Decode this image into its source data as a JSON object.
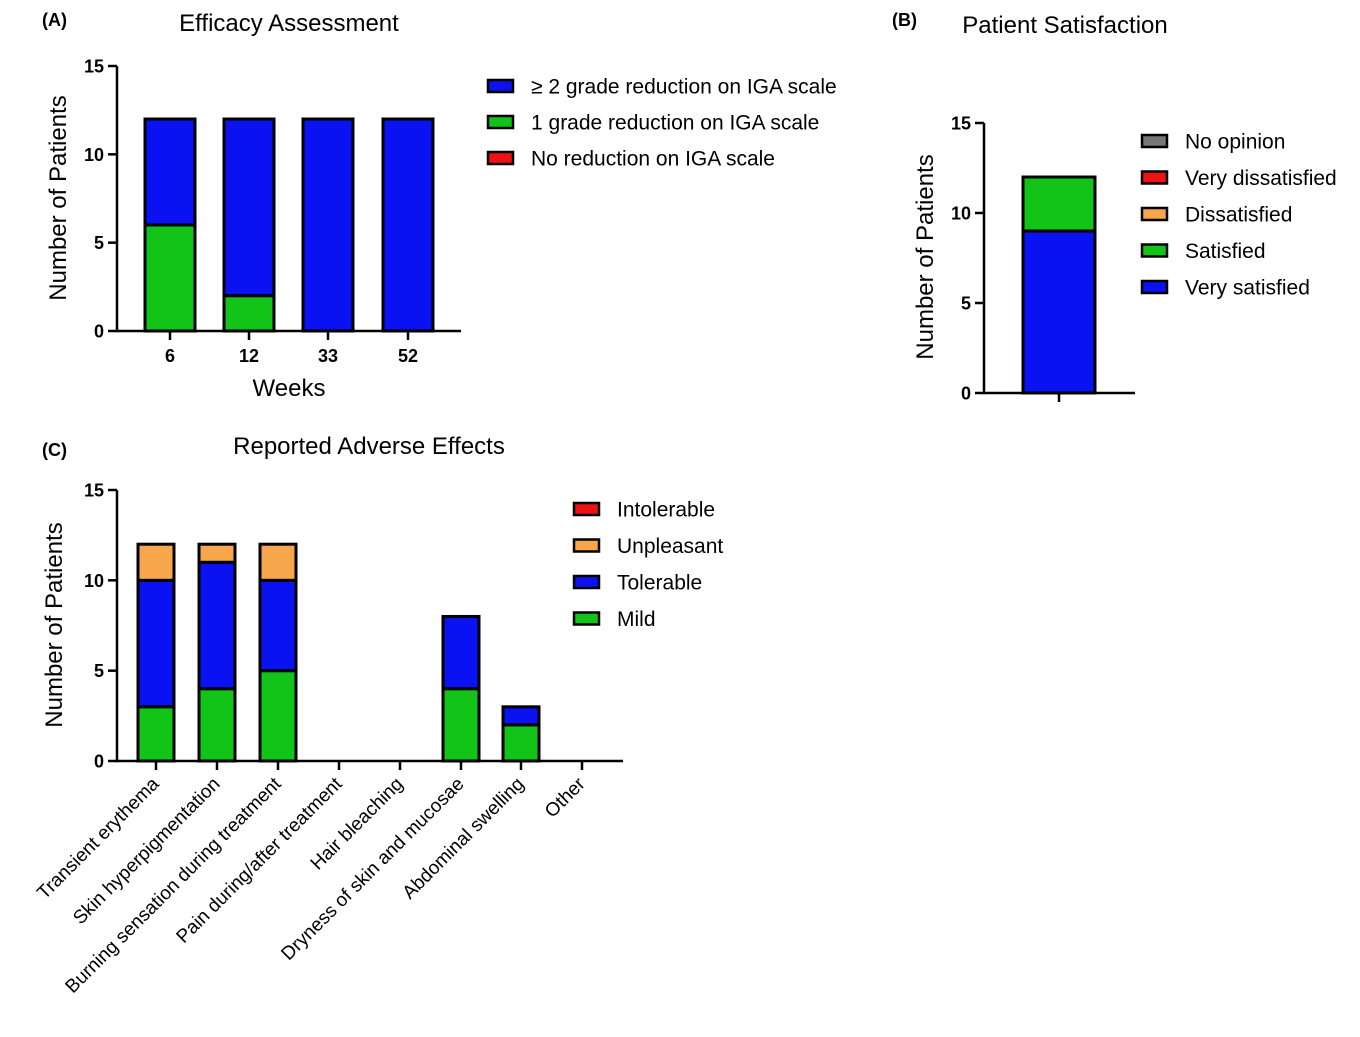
{
  "colors": {
    "blue": "#0a12f2",
    "green": "#12c418",
    "red": "#f01212",
    "orange": "#f7a64b",
    "gray": "#777777"
  },
  "chart_data": [
    {
      "id": "A",
      "panel": "(A)",
      "type": "bar",
      "stacked": true,
      "title": "Efficacy Assessment",
      "xlabel": "Weeks",
      "ylabel": "Number of Patients",
      "ylim": [
        0,
        15
      ],
      "yticks": [
        0,
        5,
        10,
        15
      ],
      "categories": [
        "6",
        "12",
        "33",
        "52"
      ],
      "series": [
        {
          "name": "1 grade reduction on IGA scale",
          "color": "#12c418",
          "values": [
            6,
            2,
            0,
            0
          ]
        },
        {
          "name": "≥ 2 grade reduction on IGA scale",
          "color": "#0a12f2",
          "values": [
            6,
            10,
            12,
            12
          ]
        },
        {
          "name": "No reduction on IGA scale",
          "color": "#f01212",
          "values": [
            0,
            0,
            0,
            0
          ]
        }
      ],
      "legend": {
        "placement": "right",
        "order": [
          {
            "name": "≥ 2 grade reduction on IGA scale",
            "color": "#0a12f2"
          },
          {
            "name": "1 grade reduction on IGA scale",
            "color": "#12c418"
          },
          {
            "name": "No reduction on IGA scale",
            "color": "#f01212"
          }
        ]
      }
    },
    {
      "id": "B",
      "panel": "(B)",
      "type": "bar",
      "stacked": true,
      "title": "Patient Satisfaction",
      "xlabel": "",
      "ylabel": "Number of Patients",
      "ylim": [
        0,
        15
      ],
      "yticks": [
        0,
        5,
        10,
        15
      ],
      "categories": [
        ""
      ],
      "series": [
        {
          "name": "Very satisfied",
          "color": "#0a12f2",
          "values": [
            9
          ]
        },
        {
          "name": "Satisfied",
          "color": "#12c418",
          "values": [
            3
          ]
        },
        {
          "name": "Dissatisfied",
          "color": "#f7a64b",
          "values": [
            0
          ]
        },
        {
          "name": "Very dissatisfied",
          "color": "#f01212",
          "values": [
            0
          ]
        },
        {
          "name": "No opinion",
          "color": "#777777",
          "values": [
            0
          ]
        }
      ],
      "legend": {
        "placement": "right",
        "order": [
          {
            "name": "No opinion",
            "color": "#777777"
          },
          {
            "name": "Very dissatisfied",
            "color": "#f01212"
          },
          {
            "name": "Dissatisfied",
            "color": "#f7a64b"
          },
          {
            "name": "Satisfied",
            "color": "#12c418"
          },
          {
            "name": "Very satisfied",
            "color": "#0a12f2"
          }
        ]
      }
    },
    {
      "id": "C",
      "panel": "(C)",
      "type": "bar",
      "stacked": true,
      "title": "Reported Adverse Effects",
      "xlabel": "",
      "ylabel": "Number of Patients",
      "ylim": [
        0,
        15
      ],
      "yticks": [
        0,
        5,
        10,
        15
      ],
      "categories": [
        "Transient erythema",
        "Skin hyperpigmentation",
        "Burning sensation during treatment",
        "Pain during/after treatment",
        "Hair bleaching",
        "Dryness of skin and mucosae",
        "Abdominal swelling",
        "Other"
      ],
      "series": [
        {
          "name": "Mild",
          "color": "#12c418",
          "values": [
            3,
            4,
            5,
            0,
            0,
            4,
            2,
            0
          ]
        },
        {
          "name": "Tolerable",
          "color": "#0a12f2",
          "values": [
            7,
            7,
            5,
            0,
            0,
            4,
            1,
            0
          ]
        },
        {
          "name": "Unpleasant",
          "color": "#f7a64b",
          "values": [
            2,
            1,
            2,
            0,
            0,
            0,
            0,
            0
          ]
        },
        {
          "name": "Intolerable",
          "color": "#f01212",
          "values": [
            0,
            0,
            0,
            0,
            0,
            0,
            0,
            0
          ]
        }
      ],
      "legend": {
        "placement": "right",
        "order": [
          {
            "name": "Intolerable",
            "color": "#f01212"
          },
          {
            "name": "Unpleasant",
            "color": "#f7a64b"
          },
          {
            "name": "Tolerable",
            "color": "#0a12f2"
          },
          {
            "name": "Mild",
            "color": "#12c418"
          }
        ]
      }
    }
  ]
}
